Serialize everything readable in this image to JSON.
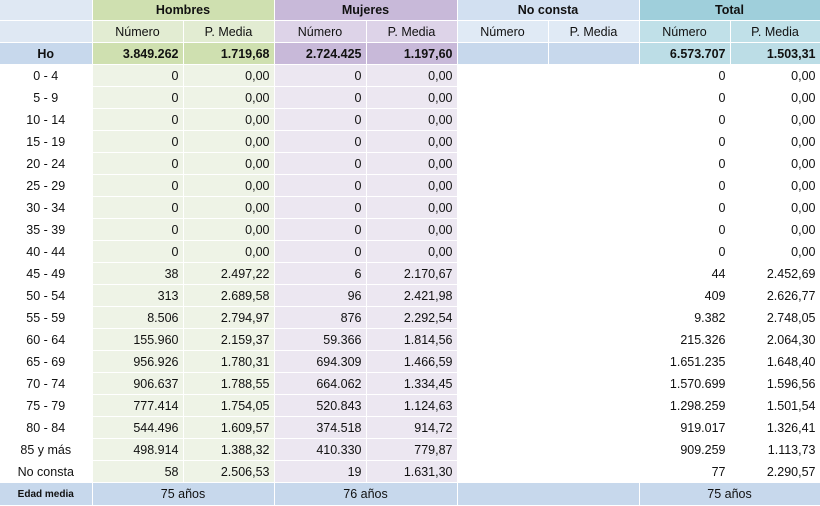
{
  "groups": {
    "hombres": "Hombres",
    "mujeres": "Mujeres",
    "no_consta": "No consta",
    "total": "Total"
  },
  "subheaders": {
    "numero": "Número",
    "pmedia": "P. Media"
  },
  "total_row": {
    "label": "Ho",
    "h_num": "3.849.262",
    "h_pm": "1.719,68",
    "m_num": "2.724.425",
    "m_pm": "1.197,60",
    "nc_num": "",
    "nc_pm": "",
    "t_num": "6.573.707",
    "t_pm": "1.503,31"
  },
  "rows": [
    {
      "label": "0 - 4",
      "h_num": "0",
      "h_pm": "0,00",
      "m_num": "0",
      "m_pm": "0,00",
      "t_num": "0",
      "t_pm": "0,00"
    },
    {
      "label": "5 - 9",
      "h_num": "0",
      "h_pm": "0,00",
      "m_num": "0",
      "m_pm": "0,00",
      "t_num": "0",
      "t_pm": "0,00"
    },
    {
      "label": "10 - 14",
      "h_num": "0",
      "h_pm": "0,00",
      "m_num": "0",
      "m_pm": "0,00",
      "t_num": "0",
      "t_pm": "0,00"
    },
    {
      "label": "15 - 19",
      "h_num": "0",
      "h_pm": "0,00",
      "m_num": "0",
      "m_pm": "0,00",
      "t_num": "0",
      "t_pm": "0,00"
    },
    {
      "label": "20 - 24",
      "h_num": "0",
      "h_pm": "0,00",
      "m_num": "0",
      "m_pm": "0,00",
      "t_num": "0",
      "t_pm": "0,00"
    },
    {
      "label": "25 - 29",
      "h_num": "0",
      "h_pm": "0,00",
      "m_num": "0",
      "m_pm": "0,00",
      "t_num": "0",
      "t_pm": "0,00"
    },
    {
      "label": "30 - 34",
      "h_num": "0",
      "h_pm": "0,00",
      "m_num": "0",
      "m_pm": "0,00",
      "t_num": "0",
      "t_pm": "0,00"
    },
    {
      "label": "35 - 39",
      "h_num": "0",
      "h_pm": "0,00",
      "m_num": "0",
      "m_pm": "0,00",
      "t_num": "0",
      "t_pm": "0,00"
    },
    {
      "label": "40 - 44",
      "h_num": "0",
      "h_pm": "0,00",
      "m_num": "0",
      "m_pm": "0,00",
      "t_num": "0",
      "t_pm": "0,00"
    },
    {
      "label": "45 - 49",
      "h_num": "38",
      "h_pm": "2.497,22",
      "m_num": "6",
      "m_pm": "2.170,67",
      "t_num": "44",
      "t_pm": "2.452,69"
    },
    {
      "label": "50 - 54",
      "h_num": "313",
      "h_pm": "2.689,58",
      "m_num": "96",
      "m_pm": "2.421,98",
      "t_num": "409",
      "t_pm": "2.626,77"
    },
    {
      "label": "55 - 59",
      "h_num": "8.506",
      "h_pm": "2.794,97",
      "m_num": "876",
      "m_pm": "2.292,54",
      "t_num": "9.382",
      "t_pm": "2.748,05"
    },
    {
      "label": "60 - 64",
      "h_num": "155.960",
      "h_pm": "2.159,37",
      "m_num": "59.366",
      "m_pm": "1.814,56",
      "t_num": "215.326",
      "t_pm": "2.064,30"
    },
    {
      "label": "65 - 69",
      "h_num": "956.926",
      "h_pm": "1.780,31",
      "m_num": "694.309",
      "m_pm": "1.466,59",
      "t_num": "1.651.235",
      "t_pm": "1.648,40"
    },
    {
      "label": "70 - 74",
      "h_num": "906.637",
      "h_pm": "1.788,55",
      "m_num": "664.062",
      "m_pm": "1.334,45",
      "t_num": "1.570.699",
      "t_pm": "1.596,56"
    },
    {
      "label": "75 - 79",
      "h_num": "777.414",
      "h_pm": "1.754,05",
      "m_num": "520.843",
      "m_pm": "1.124,63",
      "t_num": "1.298.259",
      "t_pm": "1.501,54"
    },
    {
      "label": "80 - 84",
      "h_num": "544.496",
      "h_pm": "1.609,57",
      "m_num": "374.518",
      "m_pm": "914,72",
      "t_num": "919.017",
      "t_pm": "1.326,41"
    },
    {
      "label": "85 y más",
      "h_num": "498.914",
      "h_pm": "1.388,32",
      "m_num": "410.330",
      "m_pm": "779,87",
      "t_num": "909.259",
      "t_pm": "1.113,73"
    },
    {
      "label": "No consta",
      "h_num": "58",
      "h_pm": "2.506,53",
      "m_num": "19",
      "m_pm": "1.631,30",
      "t_num": "77",
      "t_pm": "2.290,57"
    }
  ],
  "edad_media": {
    "label": "Edad media",
    "hombres": "75 años",
    "mujeres": "76 años",
    "no_consta": "",
    "total": "75 años"
  }
}
